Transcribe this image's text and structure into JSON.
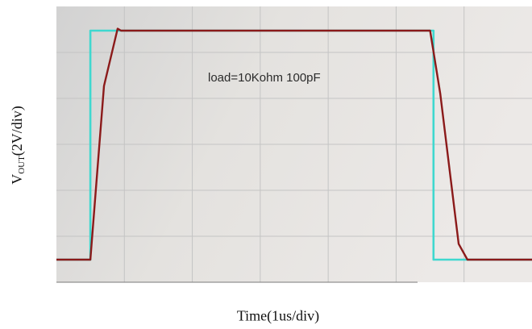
{
  "chart_data": {
    "type": "line",
    "ylabel": {
      "base": "V",
      "sub": "OUT",
      "rest": "(2V/div)"
    },
    "xlabel": "Time(1us/div)",
    "annotation": "load=10Kohm 100pF",
    "x_divisions": 7,
    "y_divisions": 6,
    "grid": true,
    "series": [
      {
        "color": "#3fd8cf",
        "points": [
          [
            0.0,
            0.0
          ],
          [
            0.5,
            0.0
          ],
          [
            0.5,
            5.8
          ],
          [
            0.95,
            5.8
          ],
          [
            5.55,
            5.8
          ],
          [
            5.55,
            0.0
          ],
          [
            7.0,
            0.0
          ]
        ]
      },
      {
        "color": "#8b1a1a",
        "points": [
          [
            0.0,
            0.0
          ],
          [
            0.5,
            0.0
          ],
          [
            0.7,
            4.4
          ],
          [
            0.9,
            5.85
          ],
          [
            0.95,
            5.8
          ],
          [
            5.5,
            5.8
          ],
          [
            5.65,
            4.2
          ],
          [
            5.92,
            0.4
          ],
          [
            6.05,
            0.0
          ],
          [
            7.0,
            0.0
          ]
        ]
      }
    ]
  }
}
